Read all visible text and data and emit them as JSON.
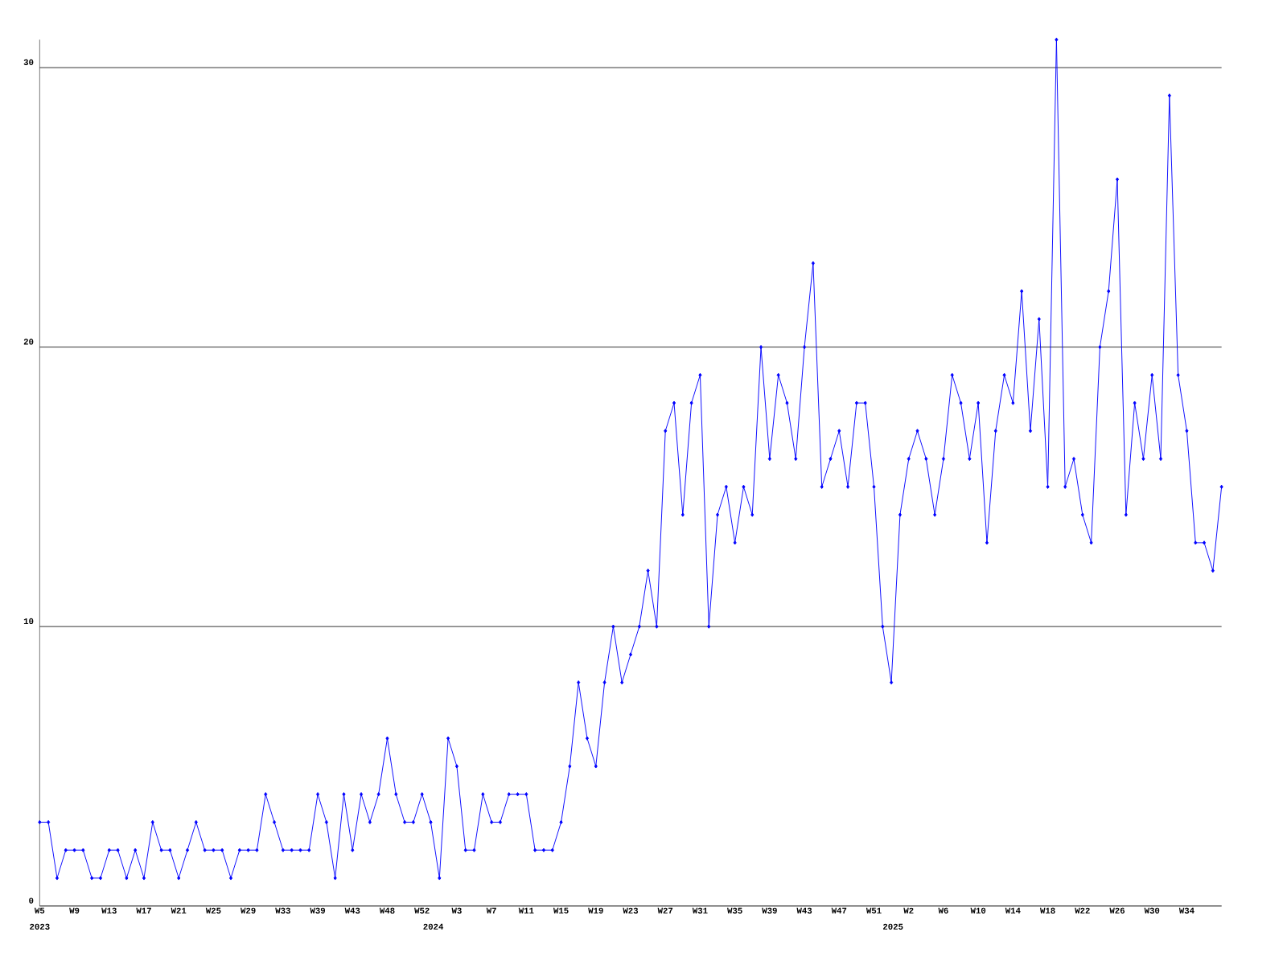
{
  "chart_data": {
    "type": "line",
    "color": "#0000ff",
    "marker": "diamond",
    "line_style": "solid",
    "grid": "y",
    "ylim": [
      0,
      31
    ],
    "yticks": [
      0,
      10,
      20,
      30
    ],
    "categories": [
      "W5",
      null,
      null,
      null,
      "W9",
      null,
      null,
      null,
      "W13",
      null,
      null,
      null,
      "W17",
      null,
      null,
      null,
      "W21",
      null,
      null,
      null,
      "W25",
      null,
      null,
      null,
      "W29",
      null,
      null,
      null,
      "W33",
      null,
      null,
      null,
      "W39",
      null,
      null,
      null,
      "W43",
      null,
      null,
      null,
      "W48",
      null,
      null,
      null,
      "W52",
      null,
      null,
      null,
      "W3",
      null,
      null,
      null,
      "W7",
      null,
      null,
      null,
      "W11",
      null,
      null,
      null,
      "W15",
      null,
      null,
      null,
      "W19",
      null,
      null,
      null,
      "W23",
      null,
      null,
      null,
      "W27",
      null,
      null,
      null,
      "W31",
      null,
      null,
      null,
      "W35",
      null,
      null,
      null,
      "W39",
      null,
      null,
      null,
      "W43",
      null,
      null,
      null,
      "W47",
      null,
      null,
      null,
      "W51",
      null,
      null,
      null,
      "W2",
      null,
      null,
      null,
      "W6",
      null,
      null,
      null,
      "W10",
      null,
      null,
      null,
      "W14",
      null,
      null,
      null,
      "W18",
      null,
      null,
      null,
      "W22",
      null,
      null,
      null,
      "W26",
      null,
      null,
      null,
      "W30",
      null,
      null,
      null,
      "W34",
      null,
      null,
      null,
      null
    ],
    "values": [
      3,
      3,
      1,
      2,
      2,
      2,
      1,
      1,
      2,
      2,
      1,
      2,
      1,
      3,
      2,
      2,
      1,
      2,
      3,
      2,
      2,
      2,
      1,
      2,
      2,
      2,
      4,
      3,
      2,
      2,
      2,
      2,
      4,
      3,
      1,
      4,
      2,
      4,
      3,
      4,
      6,
      4,
      3,
      3,
      4,
      3,
      1,
      6,
      5,
      2,
      2,
      4,
      3,
      3,
      4,
      4,
      4,
      2,
      2,
      2,
      3,
      5,
      8,
      6,
      5,
      8,
      10,
      8,
      9,
      10,
      12,
      10,
      17,
      18,
      14,
      18,
      19,
      10,
      14,
      15,
      13,
      15,
      14,
      20,
      16,
      19,
      18,
      16,
      20,
      23,
      15,
      16,
      17,
      15,
      18,
      18,
      15,
      10,
      8,
      14,
      16,
      17,
      16,
      14,
      16,
      19,
      18,
      16,
      18,
      13,
      17,
      19,
      18,
      22,
      17,
      21,
      15,
      31,
      15,
      16,
      14,
      13,
      20,
      22,
      26,
      14,
      18,
      16,
      19,
      16,
      29,
      19,
      17,
      13,
      13,
      12,
      15
    ],
    "annotations": [
      "2023",
      "2024",
      "2025"
    ]
  }
}
